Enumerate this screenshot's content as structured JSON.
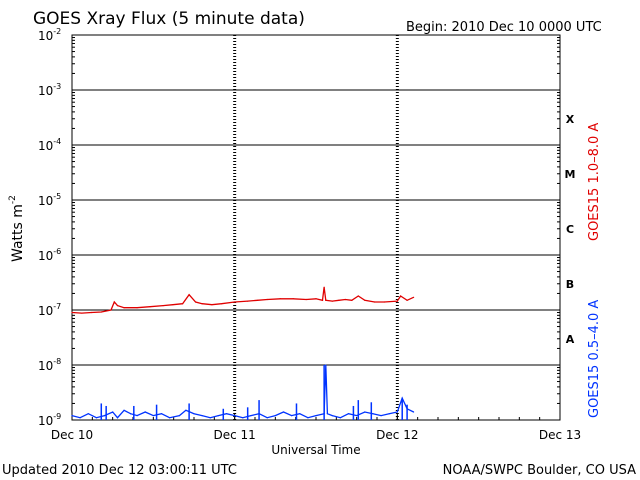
{
  "chart_data": {
    "type": "line",
    "title": "GOES Xray Flux (5 minute data)",
    "begin_label": "Begin:  2010 Dec 10 0000 UTC",
    "xlabel": "Universal Time",
    "ylabel": "Watts m",
    "ylabel_sup": "-2",
    "x_ticks": [
      "Dec 10",
      "Dec 11",
      "Dec 12",
      "Dec 13"
    ],
    "x_range_days": [
      0,
      3
    ],
    "y_scale": "log",
    "y_ticks": [
      {
        "value": 0.01,
        "label": "10",
        "exp": "-2"
      },
      {
        "value": 0.001,
        "label": "10",
        "exp": "-3"
      },
      {
        "value": 0.0001,
        "label": "10",
        "exp": "-4"
      },
      {
        "value": 1e-05,
        "label": "10",
        "exp": "-5"
      },
      {
        "value": 1e-06,
        "label": "10",
        "exp": "-6"
      },
      {
        "value": 1e-07,
        "label": "10",
        "exp": "-7"
      },
      {
        "value": 1e-08,
        "label": "10",
        "exp": "-8"
      },
      {
        "value": 1e-09,
        "label": "10",
        "exp": "-9"
      }
    ],
    "ylim": [
      1e-09,
      0.01
    ],
    "flare_classes": [
      {
        "label": "X",
        "value": 0.0003
      },
      {
        "label": "M",
        "value": 3e-05
      },
      {
        "label": "C",
        "value": 3e-06
      },
      {
        "label": "B",
        "value": 3e-07
      },
      {
        "label": "A",
        "value": 3e-08
      }
    ],
    "grid": true,
    "series": [
      {
        "name": "GOES15 1.0–8.0 A",
        "color": "#e00000",
        "x": [
          0.0,
          0.06,
          0.12,
          0.18,
          0.24,
          0.26,
          0.28,
          0.32,
          0.4,
          0.48,
          0.56,
          0.62,
          0.68,
          0.72,
          0.76,
          0.8,
          0.86,
          0.92,
          1.0,
          1.08,
          1.14,
          1.2,
          1.28,
          1.36,
          1.44,
          1.5,
          1.54,
          1.55,
          1.56,
          1.6,
          1.64,
          1.68,
          1.72,
          1.76,
          1.8,
          1.86,
          1.92,
          2.0,
          2.02,
          2.06,
          2.1
        ],
        "y": [
          9e-08,
          8.8e-08,
          9e-08,
          9.2e-08,
          1e-07,
          1.4e-07,
          1.2e-07,
          1.1e-07,
          1.1e-07,
          1.15e-07,
          1.2e-07,
          1.25e-07,
          1.3e-07,
          1.9e-07,
          1.4e-07,
          1.3e-07,
          1.25e-07,
          1.3e-07,
          1.4e-07,
          1.45e-07,
          1.5e-07,
          1.55e-07,
          1.6e-07,
          1.6e-07,
          1.55e-07,
          1.6e-07,
          1.5e-07,
          2.6e-07,
          1.5e-07,
          1.45e-07,
          1.5e-07,
          1.55e-07,
          1.5e-07,
          1.8e-07,
          1.5e-07,
          1.4e-07,
          1.4e-07,
          1.45e-07,
          1.8e-07,
          1.5e-07,
          1.7e-07
        ]
      },
      {
        "name": "GOES15 0.5–4.0 A",
        "color": "#0033ff",
        "x": [
          0.0,
          0.05,
          0.1,
          0.15,
          0.2,
          0.25,
          0.28,
          0.32,
          0.36,
          0.4,
          0.45,
          0.5,
          0.55,
          0.6,
          0.66,
          0.7,
          0.75,
          0.8,
          0.85,
          0.9,
          0.95,
          1.0,
          1.05,
          1.1,
          1.15,
          1.2,
          1.25,
          1.3,
          1.35,
          1.4,
          1.45,
          1.5,
          1.55,
          1.56,
          1.57,
          1.6,
          1.65,
          1.7,
          1.75,
          1.8,
          1.85,
          1.9,
          1.95,
          2.0,
          2.03,
          2.06,
          2.1
        ],
        "y": [
          1.2e-09,
          1.1e-09,
          1.3e-09,
          1.1e-09,
          1.2e-09,
          1.4e-09,
          1.1e-09,
          1.5e-09,
          1.3e-09,
          1.2e-09,
          1.4e-09,
          1.2e-09,
          1.3e-09,
          1.1e-09,
          1.2e-09,
          1.5e-09,
          1.3e-09,
          1.2e-09,
          1.1e-09,
          1.2e-09,
          1.3e-09,
          1.2e-09,
          1.1e-09,
          1.2e-09,
          1.3e-09,
          1.1e-09,
          1.2e-09,
          1.4e-09,
          1.2e-09,
          1.3e-09,
          1.1e-09,
          1.2e-09,
          1.3e-09,
          1e-08,
          1.3e-09,
          1.2e-09,
          1.1e-09,
          1.3e-09,
          1.2e-09,
          1.4e-09,
          1.3e-09,
          1.2e-09,
          1.3e-09,
          1.4e-09,
          2.5e-09,
          1.6e-09,
          1.4e-09
        ]
      }
    ],
    "blue_spikes": [
      {
        "x": 0.18,
        "y": 2e-09
      },
      {
        "x": 0.21,
        "y": 1.8e-09
      },
      {
        "x": 0.38,
        "y": 1.8e-09
      },
      {
        "x": 0.52,
        "y": 1.9e-09
      },
      {
        "x": 0.72,
        "y": 2e-09
      },
      {
        "x": 0.93,
        "y": 1.6e-09
      },
      {
        "x": 1.08,
        "y": 1.7e-09
      },
      {
        "x": 1.15,
        "y": 2.3e-09
      },
      {
        "x": 1.38,
        "y": 2e-09
      },
      {
        "x": 1.55,
        "y": 1e-08
      },
      {
        "x": 1.73,
        "y": 1.8e-09
      },
      {
        "x": 1.76,
        "y": 2.3e-09
      },
      {
        "x": 1.84,
        "y": 2.1e-09
      },
      {
        "x": 2.03,
        "y": 2.5e-09
      },
      {
        "x": 2.06,
        "y": 1.9e-09
      }
    ]
  },
  "footer": {
    "updated": "Updated 2010 Dec 12 03:00:11 UTC",
    "credit": "NOAA/SWPC Boulder, CO USA"
  }
}
